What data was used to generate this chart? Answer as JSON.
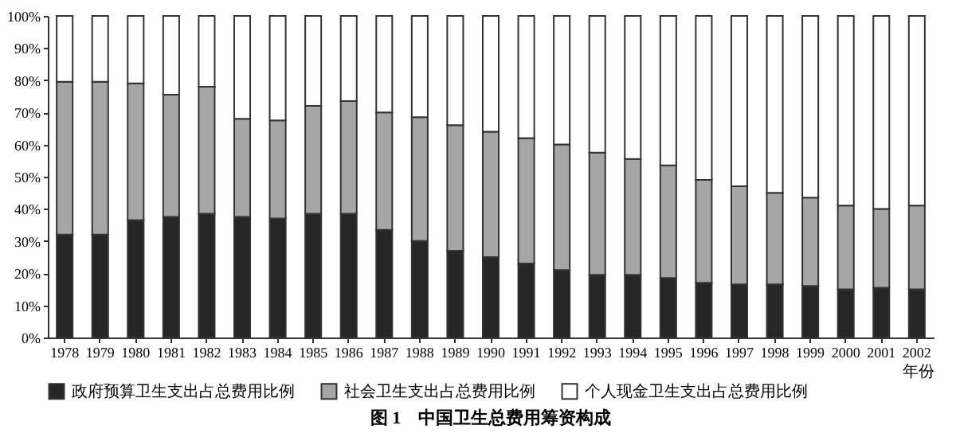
{
  "chart_data": {
    "type": "bar",
    "stacked": true,
    "title": "图 1　中国卫生总费用筹资构成",
    "xlabel": "年份",
    "categories": [
      "1978",
      "1979",
      "1980",
      "1981",
      "1982",
      "1983",
      "1984",
      "1985",
      "1986",
      "1987",
      "1988",
      "1989",
      "1990",
      "1991",
      "1992",
      "1993",
      "1994",
      "1995",
      "1996",
      "1997",
      "1998",
      "1999",
      "2000",
      "2001",
      "2002"
    ],
    "series": [
      {
        "name": "政府预算卫生支出占总费用比例",
        "color": "#262626",
        "values": [
          32,
          32,
          36.5,
          37.5,
          38.5,
          37.5,
          37,
          38.5,
          38.5,
          33.5,
          30,
          27,
          25,
          23,
          21,
          19.5,
          19.5,
          18.5,
          17,
          16.5,
          16.5,
          16,
          15,
          15.5,
          15
        ]
      },
      {
        "name": "社会卫生支出占总费用比例",
        "color": "#a6a6a6",
        "values": [
          47.5,
          47.5,
          42.5,
          38,
          39.5,
          30.5,
          30.5,
          33.5,
          35,
          36.5,
          38.5,
          39,
          39,
          39,
          39,
          38,
          36,
          35,
          32,
          30.5,
          28.5,
          27.5,
          26,
          24.5,
          26
        ]
      },
      {
        "name": "个人现金卫生支出占总费用比例",
        "color": "#ffffff",
        "values": [
          20.5,
          20.5,
          21,
          24.5,
          22,
          32,
          32.5,
          28,
          26.5,
          30,
          31.5,
          34,
          36,
          38,
          40,
          42.5,
          44.5,
          46.5,
          51,
          53,
          55,
          56.5,
          59,
          60,
          59
        ]
      }
    ],
    "ylim": [
      0,
      100
    ],
    "yticks": [
      {
        "value": 0,
        "label": "0%"
      },
      {
        "value": 10,
        "label": "10%"
      },
      {
        "value": 20,
        "label": "20%"
      },
      {
        "value": 30,
        "label": "30%"
      },
      {
        "value": 40,
        "label": "40%"
      },
      {
        "value": 50,
        "label": "50%"
      },
      {
        "value": 60,
        "label": "60%"
      },
      {
        "value": 70,
        "label": "70%"
      },
      {
        "value": 80,
        "label": "80%"
      },
      {
        "value": 90,
        "label": "90%"
      },
      {
        "value": 100,
        "label": "100%"
      }
    ],
    "grid": false,
    "legend": "bottom"
  }
}
